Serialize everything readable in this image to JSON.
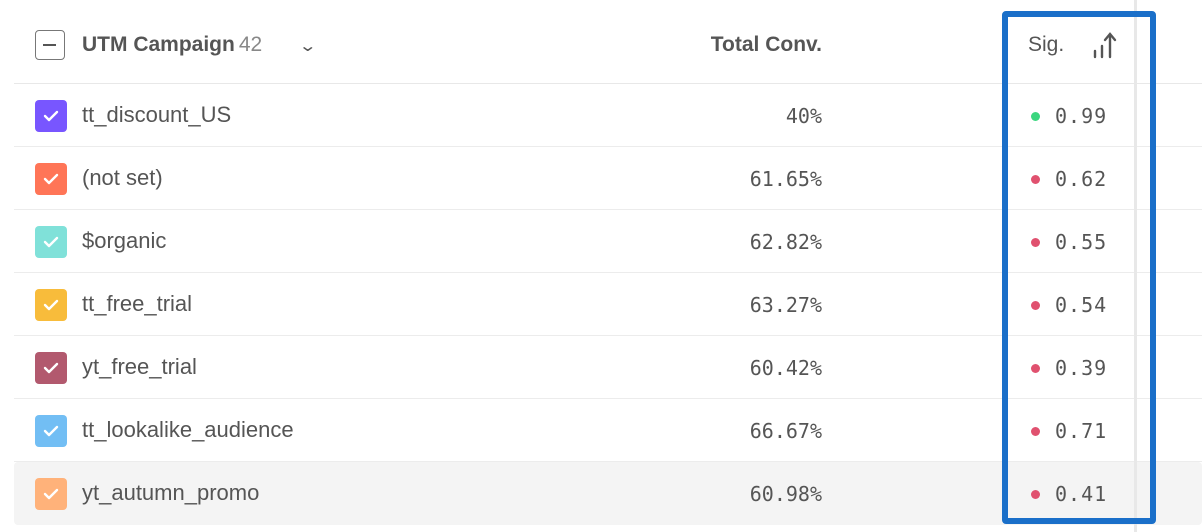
{
  "header": {
    "dimension_label": "UTM Campaign",
    "dimension_count": "42",
    "conv_label": "Total Conv.",
    "sig_label": "Sig.",
    "sort_icon": "sort-ascending-bars-icon"
  },
  "colors": {
    "significant": "#3bd67f",
    "not_significant": "#e0516f",
    "highlight_box": "#1a6fc9"
  },
  "rows": [
    {
      "name": "tt_discount_US",
      "conv": "40%",
      "sig": "0.99",
      "color": "#7856ff",
      "significant": true
    },
    {
      "name": "(not set)",
      "conv": "61.65%",
      "sig": "0.62",
      "color": "#ff7557",
      "significant": false
    },
    {
      "name": "$organic",
      "conv": "62.82%",
      "sig": "0.55",
      "color": "#80e1d9",
      "significant": false
    },
    {
      "name": "tt_free_trial",
      "conv": "63.27%",
      "sig": "0.54",
      "color": "#f8bc3b",
      "significant": false
    },
    {
      "name": "yt_free_trial",
      "conv": "60.42%",
      "sig": "0.39",
      "color": "#b2596e",
      "significant": false
    },
    {
      "name": "tt_lookalike_audience",
      "conv": "66.67%",
      "sig": "0.71",
      "color": "#72bef4",
      "significant": false
    },
    {
      "name": "yt_autumn_promo",
      "conv": "60.98%",
      "sig": "0.41",
      "color": "#ffb27a",
      "significant": false,
      "hovered": true
    }
  ]
}
